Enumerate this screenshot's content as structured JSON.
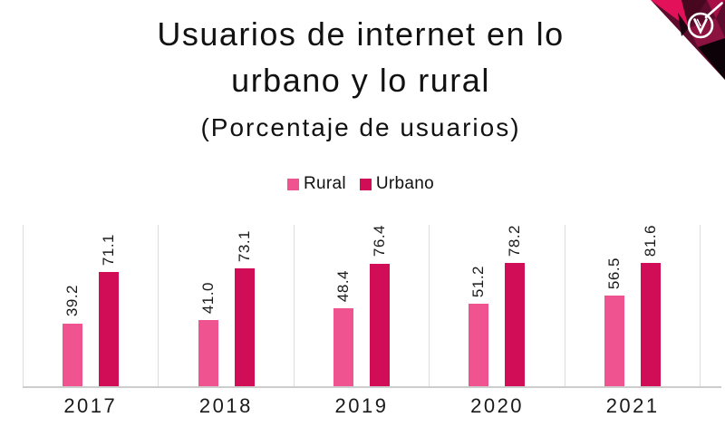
{
  "title": {
    "line1": "Usuarios de internet en lo",
    "line2": "urbano y lo rural",
    "subtitle": "(Porcentaje de usuarios)"
  },
  "chart_data": {
    "type": "bar",
    "title": "Usuarios de internet en lo urbano y lo rural",
    "subtitle": "(Porcentaje de usuarios)",
    "categories": [
      "2017",
      "2018",
      "2019",
      "2020",
      "2021"
    ],
    "series": [
      {
        "name": "Rural",
        "color": "#EF5390",
        "values": [
          39.2,
          41.0,
          48.4,
          51.2,
          56.5
        ],
        "labels": [
          "39.2",
          "41.0",
          "48.4",
          "51.2",
          "56.5"
        ]
      },
      {
        "name": "Urbano",
        "color": "#D00D56",
        "values": [
          71.1,
          73.1,
          76.4,
          78.2,
          81.6
        ],
        "labels": [
          "71.1",
          "73.1",
          "76.4",
          "78.2",
          "81.6"
        ]
      }
    ],
    "ylim": [
      0,
      100
    ],
    "value_label_rotation": -90,
    "legend_position": "top",
    "gridlines": "vertical category separators only",
    "separator_color": "#DCDCDC",
    "axis_line_color": "#CDCDCD",
    "text_color": "#1A1A1A"
  },
  "badge": {
    "name": "verificado-check-logo",
    "facet_colors": [
      "#5E0C2E",
      "#E31159",
      "#47081F",
      "#A80F46",
      "#8C1240",
      "#0C0207",
      "#1A0410"
    ],
    "mark_color": "#FFFFFF"
  }
}
